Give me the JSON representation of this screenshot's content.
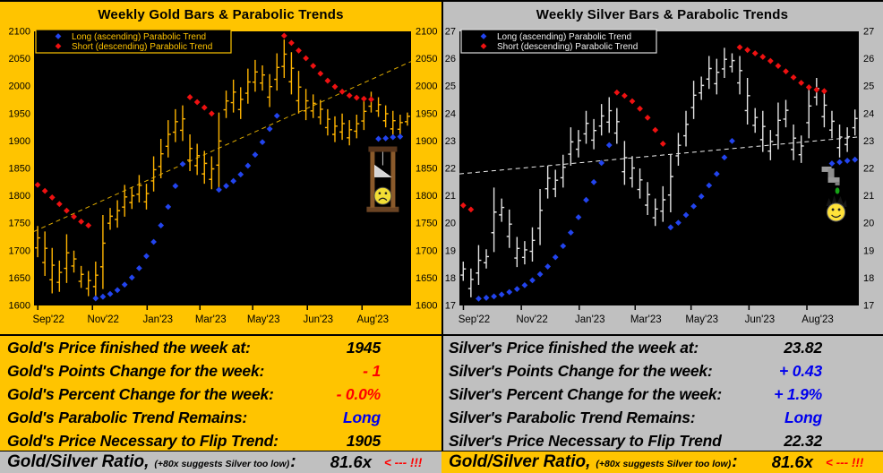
{
  "legend": {
    "long_label": "Long (ascending) Parabolic Trend",
    "short_label": "Short (descending) Parabolic Trend"
  },
  "colors": {
    "long": "#2244EE",
    "short": "#EE1111",
    "red_text": "#FF0000",
    "blue_text": "#0000EE",
    "black_text": "#000000",
    "gold_bg": "#FFC400",
    "silver_bg": "#C0C0C0"
  },
  "ratio": {
    "title": "Gold/Silver Ratio,",
    "note": "(+80x suggests Silver too low)",
    "colon": ":",
    "value": "81.6x",
    "arrow": "< --- !!!"
  },
  "panels": [
    {
      "id": "gold",
      "stats": [
        {
          "label": "Gold's Price finished the week at:",
          "value": "1945",
          "color": "#000000"
        },
        {
          "label": "Gold's Points Change for the week:",
          "value": "- 1",
          "color": "#FF0000"
        },
        {
          "label": "Gold's Percent Change for the week:",
          "value": "- 0.0%",
          "color": "#FF0000"
        },
        {
          "label": "Gold's Parabolic Trend Remains:",
          "value": "Long",
          "color": "#0000EE"
        },
        {
          "label": "Gold's Price Necessary to Flip Trend:",
          "value": "1905",
          "color": "#000000"
        }
      ]
    },
    {
      "id": "silver",
      "stats": [
        {
          "label": "Silver's Price finished the week at:",
          "value": "23.82",
          "color": "#000000"
        },
        {
          "label": "Silver's Points Change for the week:",
          "value": "+ 0.43",
          "color": "#0000EE"
        },
        {
          "label": "Silver's Percent Change for the week:",
          "value": "+ 1.9%",
          "color": "#0000EE"
        },
        {
          "label": "Silver's Parabolic Trend Remains:",
          "value": "Long",
          "color": "#0000EE"
        },
        {
          "label": "Silver's Price Necessary to Flip Trend",
          "value": "22.32",
          "color": "#000000"
        }
      ]
    }
  ],
  "chart_data": [
    {
      "type": "bar",
      "title": "Weekly Gold Bars & Parabolic Trends",
      "ylim": [
        1600,
        2100
      ],
      "ytick_step": 50,
      "x_ticks": [
        "Sep'22",
        "Nov'22",
        "Jan'23",
        "Mar'23",
        "May'23",
        "Jun'23",
        "Aug'23"
      ],
      "x_tick_pos": [
        0.01,
        0.155,
        0.3,
        0.44,
        0.58,
        0.725,
        0.87
      ],
      "close": 1945,
      "bar_color": "#FFB400",
      "legend_frame": "#FFC400",
      "legend_text": "#FFC400",
      "trendline": {
        "start": 1735,
        "end": 2045,
        "color": "#DDAA00"
      },
      "bars": [
        [
          1745,
          1688
        ],
        [
          1735,
          1654
        ],
        [
          1705,
          1622
        ],
        [
          1682,
          1625
        ],
        [
          1730,
          1641
        ],
        [
          1700,
          1660
        ],
        [
          1672,
          1632
        ],
        [
          1663,
          1617
        ],
        [
          1680,
          1615
        ],
        [
          1765,
          1630
        ],
        [
          1778,
          1738
        ],
        [
          1792,
          1742
        ],
        [
          1820,
          1762
        ],
        [
          1815,
          1776
        ],
        [
          1838,
          1788
        ],
        [
          1822,
          1775
        ],
        [
          1872,
          1808
        ],
        [
          1904,
          1832
        ],
        [
          1938,
          1870
        ],
        [
          1958,
          1898
        ],
        [
          1965,
          1900
        ],
        [
          1912,
          1845
        ],
        [
          1895,
          1838
        ],
        [
          1882,
          1822
        ],
        [
          1872,
          1812
        ],
        [
          1952,
          1815
        ],
        [
          1992,
          1942
        ],
        [
          2012,
          1952
        ],
        [
          1998,
          1940
        ],
        [
          2032,
          1968
        ],
        [
          2048,
          1990
        ],
        [
          2038,
          1992
        ],
        [
          2022,
          1962
        ],
        [
          2060,
          1992
        ],
        [
          2085,
          2015
        ],
        [
          2062,
          1985
        ],
        [
          2028,
          1950
        ],
        [
          1995,
          1938
        ],
        [
          1985,
          1942
        ],
        [
          1975,
          1930
        ],
        [
          1958,
          1910
        ],
        [
          1945,
          1898
        ],
        [
          1950,
          1902
        ],
        [
          1938,
          1892
        ],
        [
          1948,
          1905
        ],
        [
          1975,
          1920
        ],
        [
          1990,
          1952
        ],
        [
          1980,
          1944
        ],
        [
          1965,
          1925
        ],
        [
          1955,
          1908
        ],
        [
          1948,
          1910
        ],
        [
          1952,
          1928
        ]
      ],
      "parabolic": [
        {
          "trend": "short",
          "start": 0,
          "values": [
            1820,
            1809,
            1797,
            1785,
            1773,
            1762,
            1753,
            1746
          ]
        },
        {
          "trend": "long",
          "start": 8,
          "values": [
            1613,
            1616,
            1621,
            1628,
            1638,
            1651,
            1668,
            1690,
            1716,
            1746,
            1780,
            1818,
            1858
          ]
        },
        {
          "trend": "short",
          "start": 21,
          "values": [
            1980,
            1971,
            1961,
            1950
          ]
        },
        {
          "trend": "long",
          "start": 25,
          "values": [
            1811,
            1818,
            1827,
            1839,
            1855,
            1875,
            1898,
            1922,
            1946
          ]
        },
        {
          "trend": "short",
          "start": 34,
          "values": [
            2092,
            2079,
            2065,
            2051,
            2037,
            2023,
            2010,
            1999,
            1990,
            1983,
            1979,
            1977,
            1976
          ]
        },
        {
          "trend": "long",
          "start": 47,
          "values": [
            1904,
            1905,
            1907,
            1908
          ]
        }
      ],
      "decoration": {
        "name": "guillotine-sad-face",
        "week": 47.6,
        "top_value": 1890,
        "bottom_value": 1772
      }
    },
    {
      "type": "bar",
      "title": "Weekly Silver Bars & Parabolic Trends",
      "ylim": [
        17,
        27
      ],
      "ytick_step": 1,
      "x_ticks": [
        "Sep'22",
        "Nov'22",
        "Jan'23",
        "Mar'23",
        "May'23",
        "Jun'23",
        "Aug'23"
      ],
      "x_tick_pos": [
        0.01,
        0.155,
        0.3,
        0.44,
        0.58,
        0.725,
        0.87
      ],
      "close": 23.82,
      "bar_color": "#E3E3E3",
      "legend_frame": "#DCDCDC",
      "legend_text": "#F0F0F0",
      "trendline": {
        "start": 21.8,
        "end": 23.15,
        "color": "#F0F0F0"
      },
      "bars": [
        [
          18.6,
          17.9
        ],
        [
          18.35,
          17.3
        ],
        [
          19.2,
          17.75
        ],
        [
          19.05,
          18.35
        ],
        [
          21.3,
          18.95
        ],
        [
          20.9,
          20.05
        ],
        [
          20.5,
          19.1
        ],
        [
          19.5,
          18.4
        ],
        [
          19.35,
          18.5
        ],
        [
          19.85,
          18.6
        ],
        [
          21.25,
          19.2
        ],
        [
          22.1,
          20.9
        ],
        [
          21.95,
          20.95
        ],
        [
          22.5,
          21.3
        ],
        [
          23.5,
          22.1
        ],
        [
          23.4,
          22.4
        ],
        [
          24.1,
          22.9
        ],
        [
          23.8,
          22.7
        ],
        [
          24.35,
          23.2
        ],
        [
          24.6,
          23.3
        ],
        [
          24.2,
          22.9
        ],
        [
          23.0,
          21.4
        ],
        [
          22.45,
          21.3
        ],
        [
          22.0,
          20.9
        ],
        [
          21.5,
          20.3
        ],
        [
          20.9,
          19.9
        ],
        [
          21.35,
          20.05
        ],
        [
          22.5,
          20.4
        ],
        [
          23.3,
          22.1
        ],
        [
          24.1,
          22.8
        ],
        [
          25.2,
          23.8
        ],
        [
          25.35,
          24.5
        ],
        [
          26.1,
          24.9
        ],
        [
          26.0,
          24.7
        ],
        [
          26.4,
          25.3
        ],
        [
          26.2,
          25.5
        ],
        [
          26.1,
          24.7
        ],
        [
          25.3,
          23.6
        ],
        [
          24.2,
          23.3
        ],
        [
          24.1,
          22.6
        ],
        [
          23.4,
          22.3
        ],
        [
          24.4,
          22.7
        ],
        [
          24.5,
          23.5
        ],
        [
          23.6,
          22.3
        ],
        [
          23.2,
          22.2
        ],
        [
          25.0,
          23.1
        ],
        [
          25.3,
          24.3
        ],
        [
          24.8,
          23.5
        ],
        [
          24.1,
          23.1
        ],
        [
          23.6,
          22.4
        ],
        [
          23.5,
          22.6
        ],
        [
          24.15,
          23.2
        ]
      ],
      "parabolic": [
        {
          "trend": "short",
          "start": 0,
          "values": [
            20.65,
            20.5
          ]
        },
        {
          "trend": "long",
          "start": 2,
          "values": [
            17.25,
            17.28,
            17.33,
            17.4,
            17.49,
            17.6,
            17.74,
            17.92,
            18.14,
            18.42,
            18.76,
            19.17,
            19.66,
            20.22,
            20.85,
            21.5,
            22.2,
            22.85
          ]
        },
        {
          "trend": "short",
          "start": 20,
          "values": [
            24.77,
            24.65,
            24.45,
            24.18,
            23.85,
            23.4,
            22.9
          ]
        },
        {
          "trend": "long",
          "start": 27,
          "values": [
            19.85,
            20.02,
            20.3,
            20.62,
            20.98,
            21.38,
            21.8,
            22.4,
            23.0
          ]
        },
        {
          "trend": "short",
          "start": 36,
          "values": [
            26.42,
            26.32,
            26.2,
            26.07,
            25.92,
            25.74,
            25.54,
            25.32,
            25.12,
            24.96,
            24.87,
            24.82
          ]
        },
        {
          "trend": "long",
          "start": 48,
          "values": [
            22.18,
            22.23,
            22.28,
            22.32
          ]
        }
      ],
      "decoration": {
        "name": "faucet-happy-face",
        "week": 48.3,
        "top_value": 22.1,
        "bottom_value": 20.1
      }
    }
  ]
}
